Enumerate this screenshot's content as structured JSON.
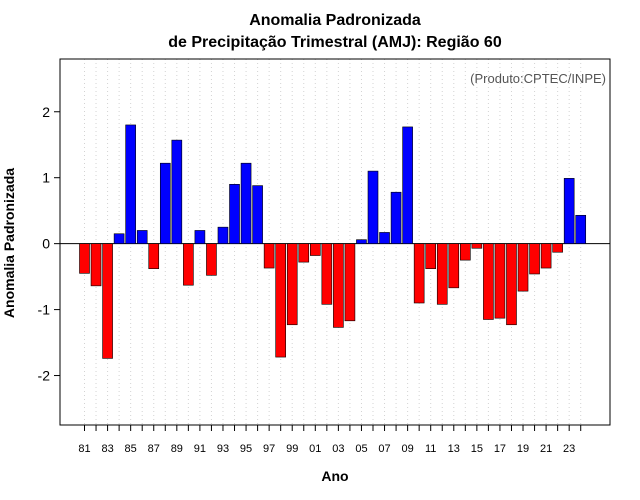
{
  "chart_data": {
    "type": "bar",
    "title": "Anomalia Padronizada",
    "subtitle": "de Precipitação Trimestral (AMJ): Região 60",
    "xlabel": "Ano",
    "ylabel": "Anomalia Padronizada",
    "credit": "(Produto:CPTEC/INPE)",
    "ylim": [
      -2.75,
      2.8
    ],
    "yticks": [
      -2,
      -1,
      0,
      1,
      2
    ],
    "ytick_labels": [
      "-2",
      "-1",
      "0",
      "1",
      "2"
    ],
    "grid": "vertical dotted",
    "categories": [
      "1981",
      "1982",
      "1983",
      "1984",
      "1985",
      "1986",
      "1987",
      "1988",
      "1989",
      "1990",
      "1991",
      "1992",
      "1993",
      "1994",
      "1995",
      "1996",
      "1997",
      "1998",
      "1999",
      "2000",
      "2001",
      "2002",
      "2003",
      "2004",
      "2005",
      "2006",
      "2007",
      "2008",
      "2009",
      "2010",
      "2011",
      "2012",
      "2013",
      "2014",
      "2015",
      "2016",
      "2017",
      "2018",
      "2019",
      "2020",
      "2021",
      "2022",
      "2023",
      "2024"
    ],
    "xtick_labels": [
      "81",
      "83",
      "85",
      "87",
      "89",
      "91",
      "93",
      "95",
      "97",
      "99",
      "01",
      "03",
      "05",
      "07",
      "09",
      "11",
      "13",
      "15",
      "17",
      "19",
      "21",
      "23"
    ],
    "values": [
      -0.45,
      -0.64,
      -1.74,
      0.15,
      1.8,
      0.2,
      -0.38,
      1.22,
      1.57,
      -0.63,
      0.2,
      -0.48,
      0.25,
      0.9,
      1.22,
      0.88,
      -0.37,
      -1.72,
      -1.23,
      -0.28,
      -0.18,
      -0.92,
      -1.27,
      -1.17,
      0.06,
      1.1,
      0.17,
      0.78,
      1.77,
      -0.9,
      -0.38,
      -0.92,
      -0.67,
      -0.25,
      -0.07,
      -1.15,
      -1.13,
      -1.23,
      -0.72,
      -0.46,
      -0.37,
      -0.13,
      0.99,
      0.43
    ],
    "colors": {
      "positive": "#0000ff",
      "negative": "#ff0000",
      "edge": "#000000",
      "grid": "#d3d3d3"
    }
  }
}
